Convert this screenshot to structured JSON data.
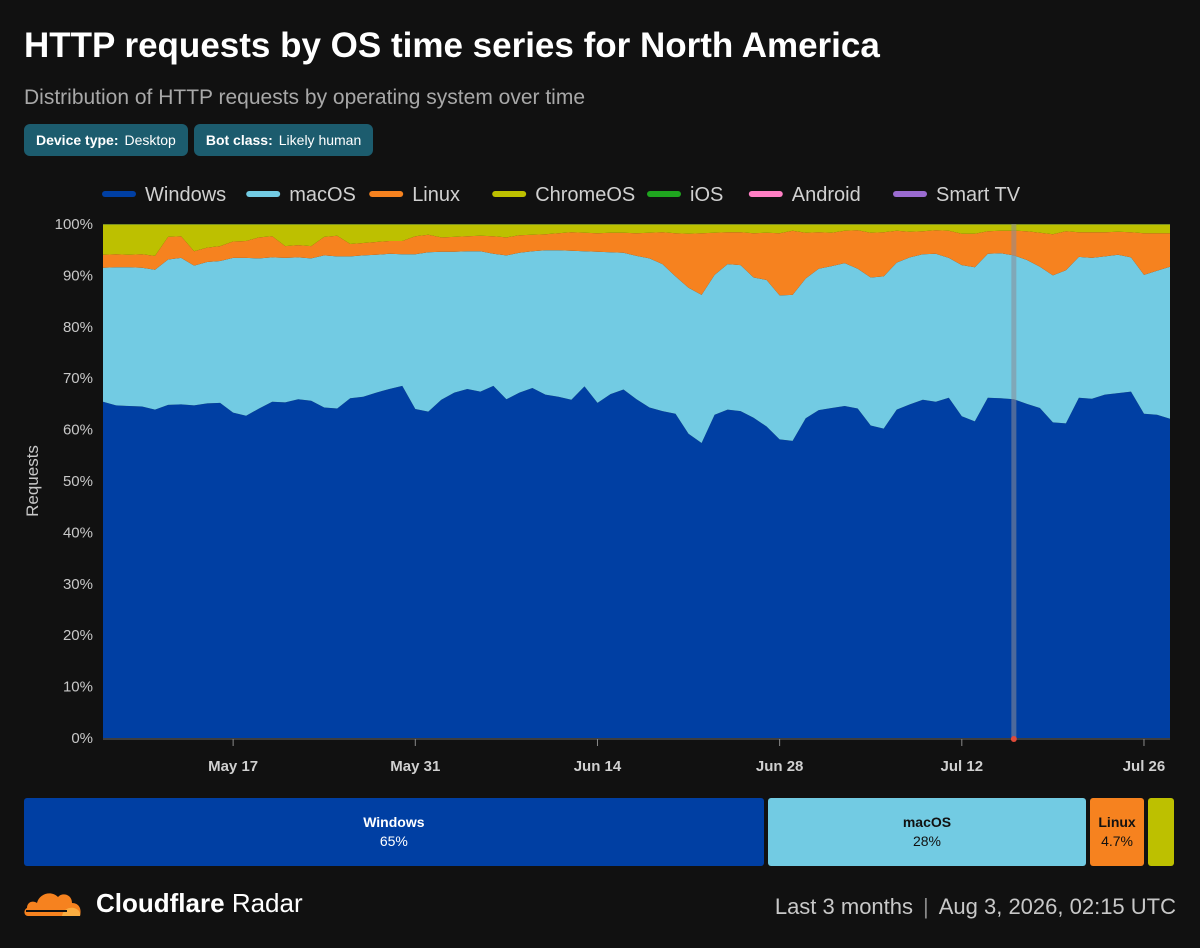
{
  "header": {
    "title": "HTTP requests by OS time series for North America",
    "subtitle": "Distribution of HTTP requests by operating system over time"
  },
  "filters": [
    {
      "label": "Device type:",
      "value": "Desktop"
    },
    {
      "label": "Bot class:",
      "value": "Likely human"
    }
  ],
  "colors": {
    "Windows": "#003fa3",
    "macOS": "#72cbe3",
    "Linux": "#f6821f",
    "ChromeOS": "#bdc000",
    "iOS": "#1fa51f",
    "Android": "#ff7fc4",
    "Smart TV": "#9a6bd0"
  },
  "chart_data": {
    "type": "area",
    "stacked": true,
    "ylabel": "Requests",
    "ylim": [
      0,
      100
    ],
    "yticks": [
      "0%",
      "10%",
      "20%",
      "30%",
      "40%",
      "50%",
      "60%",
      "70%",
      "80%",
      "90%",
      "100%"
    ],
    "x_start": "2026-05-07",
    "xticks": [
      {
        "date": "2026-05-17",
        "label": "May 17"
      },
      {
        "date": "2026-05-31",
        "label": "May 31"
      },
      {
        "date": "2026-06-14",
        "label": "Jun 14"
      },
      {
        "date": "2026-06-28",
        "label": "Jun 28"
      },
      {
        "date": "2026-07-12",
        "label": "Jul 12"
      },
      {
        "date": "2026-07-26",
        "label": "Jul 26"
      }
    ],
    "highlight_date": "2026-07-16",
    "grid": false,
    "legend_position": "top",
    "series": [
      {
        "name": "Windows",
        "values": [
          65.4,
          64.7,
          64.6,
          64.5,
          63.9,
          64.8,
          64.9,
          64.7,
          65.1,
          65.2,
          63.3,
          62.7,
          64.1,
          65.4,
          65.3,
          65.9,
          65.6,
          64.3,
          64.1,
          66.1,
          66.4,
          67.2,
          67.9,
          68.5,
          64.0,
          63.5,
          65.8,
          67.2,
          67.9,
          67.4,
          68.5,
          65.9,
          67.2,
          68.1,
          66.8,
          66.4,
          65.8,
          68.4,
          65.2,
          66.9,
          67.8,
          65.9,
          64.3,
          63.6,
          63.1,
          59.2,
          57.4,
          62.9,
          63.9,
          63.6,
          62.3,
          60.6,
          58.1,
          57.8,
          62.2,
          63.8,
          64.2,
          64.6,
          64.1,
          60.8,
          60.2,
          63.9,
          64.9,
          65.8,
          65.4,
          66.2,
          62.6,
          61.6,
          66.2,
          66.1,
          65.9,
          65.0,
          64.2,
          61.4,
          61.2,
          66.2,
          66.0,
          66.8,
          67.1,
          67.4,
          63.1,
          62.9,
          62.1
        ]
      },
      {
        "name": "macOS",
        "values": [
          26.1,
          26.9,
          27.0,
          27.0,
          27.2,
          28.3,
          28.5,
          27.2,
          27.5,
          27.6,
          30.1,
          30.7,
          29.2,
          28.1,
          28.1,
          27.6,
          27.7,
          29.6,
          29.6,
          27.6,
          27.5,
          26.8,
          26.3,
          25.6,
          30.1,
          31.0,
          28.8,
          27.4,
          26.8,
          27.3,
          25.7,
          28.0,
          27.2,
          26.6,
          28.1,
          28.5,
          29.0,
          26.3,
          29.4,
          27.6,
          26.6,
          27.9,
          29.0,
          28.6,
          26.7,
          28.4,
          28.8,
          27.2,
          28.3,
          28.4,
          27.3,
          28.5,
          28.0,
          28.4,
          27.2,
          27.5,
          27.6,
          27.8,
          27.2,
          28.8,
          29.6,
          28.6,
          28.6,
          28.3,
          28.8,
          27.2,
          29.4,
          30.0,
          28.0,
          28.2,
          28.0,
          28.0,
          27.5,
          28.6,
          29.8,
          27.4,
          27.4,
          26.9,
          26.9,
          26.1,
          27.0,
          28.0,
          29.6
        ]
      },
      {
        "name": "Linux",
        "values": [
          2.5,
          2.5,
          2.4,
          2.6,
          2.7,
          4.4,
          4.2,
          2.8,
          2.8,
          2.9,
          3.2,
          3.3,
          4.1,
          4.1,
          2.3,
          2.4,
          2.4,
          3.6,
          4.0,
          2.4,
          2.4,
          2.5,
          2.5,
          2.6,
          3.5,
          3.4,
          2.8,
          2.9,
          2.9,
          3.0,
          3.4,
          3.5,
          3.4,
          3.2,
          3.1,
          3.3,
          3.6,
          3.6,
          3.6,
          3.8,
          3.9,
          4.4,
          5.0,
          6.2,
          8.4,
          10.5,
          12.0,
          8.2,
          6.2,
          6.4,
          8.6,
          9.2,
          12.1,
          12.5,
          8.9,
          7.1,
          6.5,
          6.3,
          7.5,
          8.7,
          8.6,
          6.2,
          5.0,
          4.5,
          4.6,
          5.3,
          6.1,
          6.5,
          4.4,
          4.4,
          4.8,
          5.6,
          6.6,
          8.0,
          7.6,
          4.8,
          5.0,
          4.7,
          4.5,
          4.9,
          8.1,
          7.3,
          6.5
        ]
      },
      {
        "name": "ChromeOS",
        "values": [
          5.9,
          5.8,
          5.9,
          5.8,
          6.1,
          2.4,
          2.3,
          5.2,
          4.5,
          4.2,
          3.3,
          3.2,
          2.5,
          2.3,
          4.2,
          4.0,
          4.2,
          2.4,
          2.2,
          3.8,
          3.6,
          3.4,
          3.2,
          3.2,
          2.3,
          2.0,
          2.5,
          2.4,
          2.3,
          2.2,
          2.3,
          2.5,
          2.1,
          2.0,
          1.9,
          1.7,
          1.5,
          1.6,
          1.7,
          1.6,
          1.6,
          1.7,
          1.6,
          1.5,
          1.7,
          1.8,
          1.7,
          1.6,
          1.5,
          1.5,
          1.7,
          1.6,
          1.7,
          1.2,
          1.6,
          1.5,
          1.6,
          1.2,
          1.1,
          1.6,
          1.5,
          1.2,
          1.4,
          1.3,
          1.1,
          1.2,
          1.8,
          1.8,
          1.3,
          1.2,
          1.2,
          1.3,
          1.6,
          1.9,
          1.3,
          1.5,
          1.5,
          1.5,
          1.4,
          1.5,
          1.7,
          1.7,
          1.7
        ]
      },
      {
        "name": "iOS",
        "values": [
          0.05,
          0.05,
          0.05,
          0.05,
          0.05,
          0.05,
          0.05,
          0.05,
          0.05,
          0.05,
          0.05,
          0.05,
          0.05,
          0.05,
          0.05,
          0.05,
          0.05,
          0.05,
          0.05,
          0.05,
          0.05,
          0.05,
          0.05,
          0.05,
          0.05,
          0.05,
          0.05,
          0.05,
          0.05,
          0.05,
          0.05,
          0.05,
          0.05,
          0.05,
          0.05,
          0.05,
          0.05,
          0.05,
          0.05,
          0.05,
          0.05,
          0.05,
          0.05,
          0.05,
          0.05,
          0.05,
          0.05,
          0.05,
          0.05,
          0.05,
          0.05,
          0.05,
          0.05,
          0.05,
          0.05,
          0.05,
          0.05,
          0.05,
          0.05,
          0.05,
          0.05,
          0.05,
          0.05,
          0.05,
          0.05,
          0.05,
          0.05,
          0.05,
          0.05,
          0.05,
          0.05,
          0.05,
          0.05,
          0.05,
          0.05,
          0.05,
          0.05,
          0.05,
          0.05,
          0.05,
          0.05,
          0.05,
          0.05
        ]
      },
      {
        "name": "Android",
        "values": [
          0.02,
          0.02,
          0.02,
          0.02,
          0.02,
          0.02,
          0.02,
          0.02,
          0.02,
          0.02,
          0.02,
          0.02,
          0.02,
          0.02,
          0.02,
          0.02,
          0.02,
          0.02,
          0.02,
          0.02,
          0.02,
          0.02,
          0.02,
          0.02,
          0.02,
          0.02,
          0.02,
          0.02,
          0.02,
          0.02,
          0.02,
          0.02,
          0.02,
          0.02,
          0.02,
          0.02,
          0.02,
          0.02,
          0.02,
          0.02,
          0.02,
          0.02,
          0.02,
          0.02,
          0.02,
          0.02,
          0.02,
          0.02,
          0.02,
          0.02,
          0.02,
          0.02,
          0.02,
          0.02,
          0.02,
          0.02,
          0.02,
          0.02,
          0.02,
          0.02,
          0.02,
          0.02,
          0.02,
          0.02,
          0.02,
          0.02,
          0.02,
          0.02,
          0.02,
          0.02,
          0.02,
          0.02,
          0.02,
          0.02,
          0.02,
          0.02,
          0.02,
          0.02,
          0.02,
          0.02,
          0.02,
          0.02,
          0.02
        ]
      },
      {
        "name": "Smart TV",
        "values": [
          0.01,
          0.01,
          0.01,
          0.01,
          0.01,
          0.01,
          0.01,
          0.01,
          0.01,
          0.01,
          0.01,
          0.01,
          0.01,
          0.01,
          0.01,
          0.01,
          0.01,
          0.01,
          0.01,
          0.01,
          0.01,
          0.01,
          0.01,
          0.01,
          0.01,
          0.01,
          0.01,
          0.01,
          0.01,
          0.01,
          0.01,
          0.01,
          0.01,
          0.01,
          0.01,
          0.01,
          0.01,
          0.01,
          0.01,
          0.01,
          0.01,
          0.01,
          0.01,
          0.01,
          0.01,
          0.01,
          0.01,
          0.01,
          0.01,
          0.01,
          0.01,
          0.01,
          0.01,
          0.01,
          0.01,
          0.01,
          0.01,
          0.01,
          0.01,
          0.01,
          0.01,
          0.01,
          0.01,
          0.01,
          0.01,
          0.01,
          0.01,
          0.01,
          0.01,
          0.01,
          0.01,
          0.01,
          0.01,
          0.01,
          0.01,
          0.01,
          0.01,
          0.01,
          0.01,
          0.01,
          0.01,
          0.01,
          0.01
        ]
      }
    ]
  },
  "summary": {
    "windows": {
      "name": "Windows",
      "value": "65%",
      "share": 65
    },
    "macos": {
      "name": "macOS",
      "value": "28%",
      "share": 28
    },
    "linux": {
      "name": "Linux",
      "value": "4.7%",
      "share": 4.7
    },
    "chromeos": {
      "name": "ChromeOS",
      "share": 2.3
    }
  },
  "footer": {
    "brand_bold": "Cloudflare",
    "brand_rest": "Radar",
    "range": "Last 3 months",
    "separator": "|",
    "timestamp": "Aug 3, 2026, 02:15 UTC"
  }
}
